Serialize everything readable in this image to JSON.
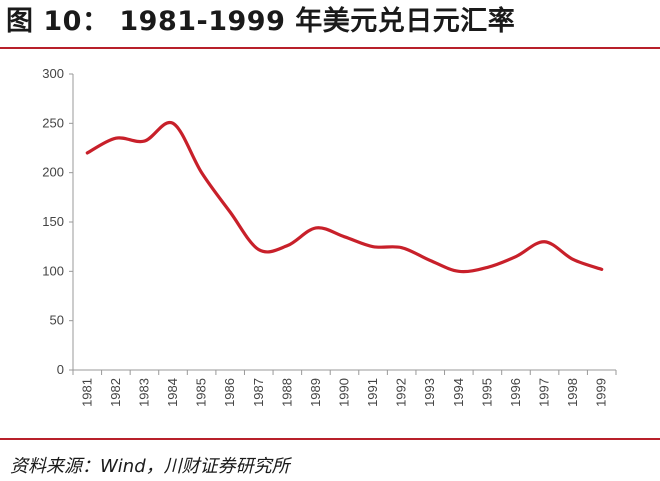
{
  "header": {
    "title": "图 10：  1981-1999 年美元兑日元汇率"
  },
  "footer": {
    "source": "资料来源：Wind，川财证券研究所"
  },
  "chart_data": {
    "type": "line",
    "title": "1981-1999 年美元兑日元汇率",
    "xlabel": "",
    "ylabel": "",
    "ylim": [
      0,
      300
    ],
    "yticks": [
      0,
      50,
      100,
      150,
      200,
      250,
      300
    ],
    "categories": [
      "1981",
      "1982",
      "1983",
      "1984",
      "1985",
      "1986",
      "1987",
      "1988",
      "1989",
      "1990",
      "1991",
      "1992",
      "1993",
      "1994",
      "1995",
      "1996",
      "1997",
      "1998",
      "1999"
    ],
    "series": [
      {
        "values": [
          220,
          235,
          232,
          250,
          200,
          160,
          122,
          126,
          144,
          135,
          125,
          124,
          111,
          100,
          104,
          115,
          130,
          112,
          102
        ],
        "color": "#c8202a"
      }
    ],
    "grid": false
  }
}
